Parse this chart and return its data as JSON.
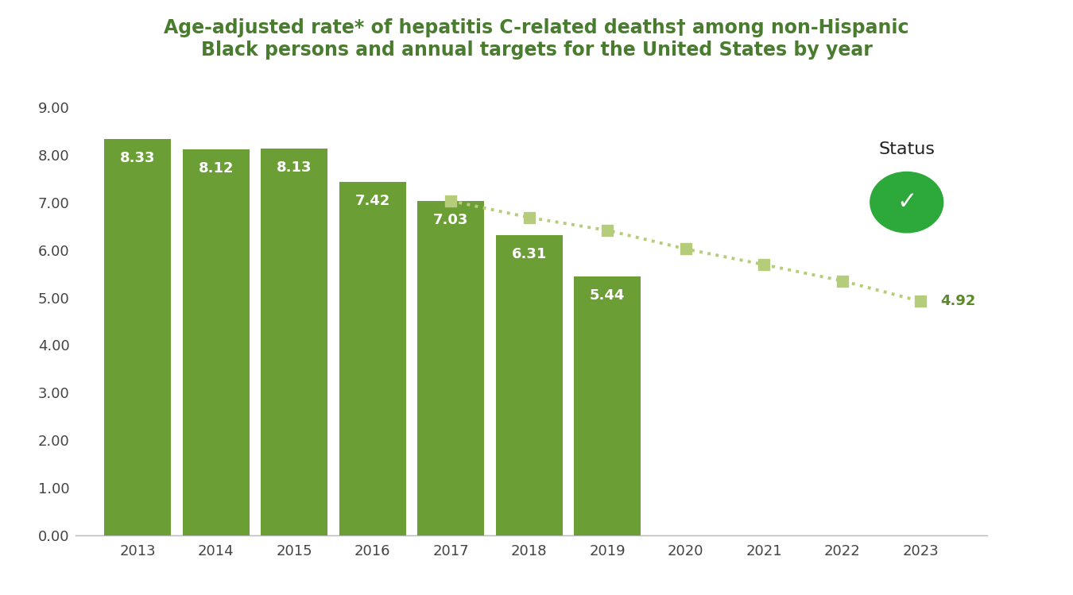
{
  "title_line1": "Age-adjusted rate* of hepatitis C-related deaths† among non-Hispanic",
  "title_line2": "Black persons and annual targets for the United States by year",
  "title_color": "#4a7c2f",
  "bar_years": [
    2013,
    2014,
    2015,
    2016,
    2017,
    2018,
    2019
  ],
  "bar_values": [
    8.33,
    8.12,
    8.13,
    7.42,
    7.03,
    6.31,
    5.44
  ],
  "bar_color": "#6b9e35",
  "bar_label_color": "#ffffff",
  "target_years": [
    2017,
    2018,
    2019,
    2020,
    2021,
    2022,
    2023
  ],
  "target_values": [
    7.03,
    6.68,
    6.41,
    6.02,
    5.69,
    5.35,
    4.92
  ],
  "target_color": "#b5cc7a",
  "final_label": "4.92",
  "final_label_color": "#5a8a2a",
  "all_years": [
    2013,
    2014,
    2015,
    2016,
    2017,
    2018,
    2019,
    2020,
    2021,
    2022,
    2023
  ],
  "ylim": [
    0,
    9.0
  ],
  "yticks": [
    0.0,
    1.0,
    2.0,
    3.0,
    4.0,
    5.0,
    6.0,
    7.0,
    8.0,
    9.0
  ],
  "status_text": "Status",
  "background_color": "#ffffff",
  "tick_label_color": "#444444",
  "axis_color": "#bbbbbb",
  "bar_width": 0.85,
  "title_fontsize": 17,
  "bar_label_fontsize": 13,
  "tick_fontsize": 13
}
